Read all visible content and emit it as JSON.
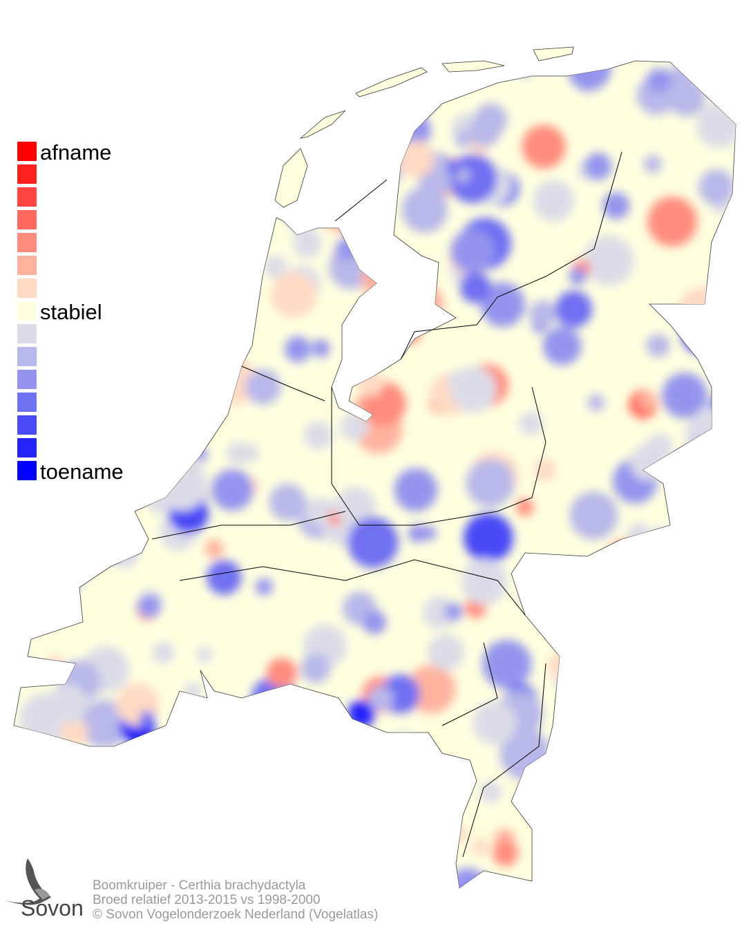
{
  "legend": {
    "labels": {
      "top": "afname",
      "middle": "stabiel",
      "bottom": "toename"
    },
    "colors": [
      "#ff0000",
      "#ff2020",
      "#ff4444",
      "#ff6a60",
      "#ff8c7e",
      "#ffb39f",
      "#ffdac4",
      "#ffffe0",
      "#dcdce8",
      "#b8b8ea",
      "#9494ee",
      "#7070f2",
      "#4a4af6",
      "#2424fa",
      "#0000ff"
    ]
  },
  "map": {
    "increase_color": "#0000ff",
    "decrease_color": "#ff0000",
    "stable_color": "#ffffe0",
    "border_color": "#000000"
  },
  "logo": {
    "name": "Sovon",
    "icon": "swallow-icon"
  },
  "credits": {
    "line1": "Boomkruiper - Certhia brachydactyla",
    "line2": "Broed relatief 2013-2015 vs 1998-2000",
    "line3": "© Sovon Vogelonderzoek Nederland (Vogelatlas)"
  }
}
